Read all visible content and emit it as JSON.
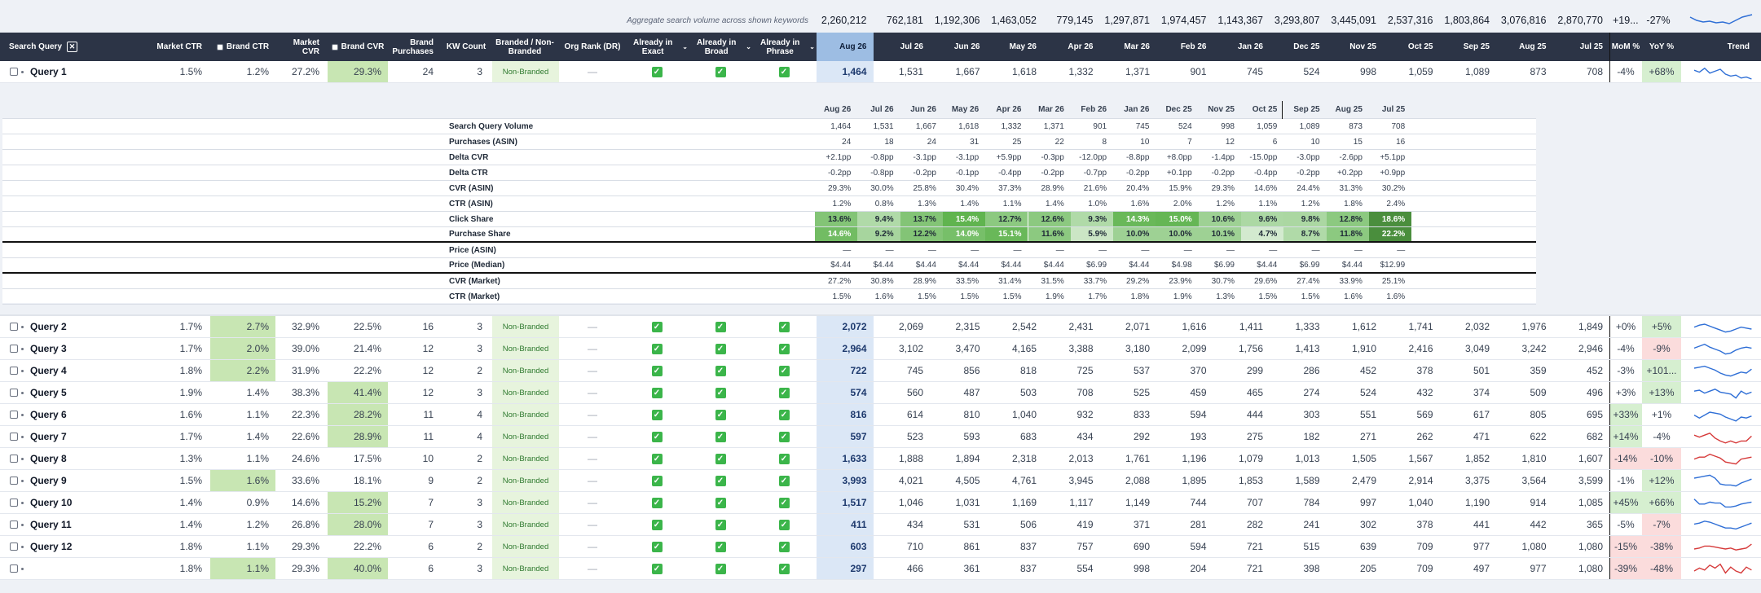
{
  "aggregate": {
    "label": "Aggregate search volume across shown keywords",
    "values": [
      "2,260,212",
      "762,181",
      "1,192,306",
      "1,463,052",
      "779,145",
      "1,297,871",
      "1,974,457",
      "1,143,367",
      "3,293,807",
      "3,445,091",
      "2,537,316",
      "1,803,864",
      "3,076,816",
      "2,870,770"
    ],
    "mom": "+19...",
    "yoy": "-27%"
  },
  "header": {
    "search_query": "Search Query",
    "market_ctr": "Market CTR",
    "brand_ctr": "Brand CTR",
    "market_cvr": "Market CVR",
    "brand_cvr": "Brand CVR",
    "brand_purchases": "Brand Purchases",
    "kw_count": "KW Count",
    "branded": "Branded / Non-Branded",
    "org_rank": "Org Rank (DR)",
    "already_exact": "Already in Exact",
    "already_broad": "Already in Broad",
    "already_phrase": "Already in Phrase",
    "months": [
      "Aug 26",
      "Jul 26",
      "Jun 26",
      "May 26",
      "Apr 26",
      "Mar 26",
      "Feb 26",
      "Jan 26",
      "Dec 25",
      "Nov 25",
      "Oct 25",
      "Sep 25",
      "Aug 25",
      "Jul 25"
    ],
    "mom": "MoM %",
    "yoy": "YoY %",
    "trend": "Trend"
  },
  "queries": [
    {
      "name": "Query 1",
      "mctr": "1.5%",
      "bctr": "1.2%",
      "mcvr": "27.2%",
      "bcvr": "29.3%",
      "bp": "24",
      "kw": "3",
      "br": "Non-Branded",
      "rank": "—",
      "vals": [
        "1,464",
        "1,531",
        "1,667",
        "1,618",
        "1,332",
        "1,371",
        "901",
        "745",
        "524",
        "998",
        "1,059",
        "1,089",
        "873",
        "708"
      ],
      "mom": "-4%",
      "yoy": "+68%",
      "trend": [
        6,
        8,
        4,
        9,
        7,
        5,
        10,
        12,
        11,
        14,
        13,
        15
      ],
      "tc": "#2f6fd6"
    },
    {
      "name": "Query 2",
      "mctr": "1.7%",
      "bctr": "2.7%",
      "mcvr": "32.9%",
      "bcvr": "22.5%",
      "bp": "16",
      "kw": "3",
      "br": "Non-Branded",
      "rank": "—",
      "vals": [
        "2,072",
        "2,069",
        "2,315",
        "2,542",
        "2,431",
        "2,071",
        "1,616",
        "1,411",
        "1,333",
        "1,612",
        "1,741",
        "2,032",
        "1,976",
        "1,849"
      ],
      "mom": "+0%",
      "yoy": "+5%",
      "trend": [
        8,
        6,
        5,
        7,
        9,
        11,
        13,
        12,
        10,
        8,
        9,
        10
      ],
      "tc": "#2f6fd6"
    },
    {
      "name": "Query 3",
      "mctr": "1.7%",
      "bctr": "2.0%",
      "mcvr": "39.0%",
      "bcvr": "21.4%",
      "bp": "12",
      "kw": "3",
      "br": "Non-Branded",
      "rank": "—",
      "vals": [
        "2,964",
        "3,102",
        "3,470",
        "4,165",
        "3,388",
        "3,180",
        "2,099",
        "1,756",
        "1,413",
        "1,910",
        "2,416",
        "3,049",
        "3,242",
        "2,946"
      ],
      "mom": "-4%",
      "yoy": "-9%",
      "trend": [
        7,
        5,
        3,
        6,
        8,
        10,
        13,
        12,
        9,
        7,
        6,
        7
      ],
      "tc": "#2f6fd6"
    },
    {
      "name": "Query 4",
      "mctr": "1.8%",
      "bctr": "2.2%",
      "mcvr": "31.9%",
      "bcvr": "22.2%",
      "bp": "12",
      "kw": "2",
      "br": "Non-Branded",
      "rank": "—",
      "vals": [
        "722",
        "745",
        "856",
        "818",
        "725",
        "537",
        "370",
        "299",
        "286",
        "452",
        "378",
        "501",
        "359",
        "452"
      ],
      "mom": "-3%",
      "yoy": "+101...",
      "trend": [
        5,
        4,
        3,
        5,
        7,
        10,
        12,
        13,
        11,
        9,
        10,
        6
      ],
      "tc": "#2f6fd6"
    },
    {
      "name": "Query 5",
      "mctr": "1.9%",
      "bctr": "1.4%",
      "mcvr": "38.3%",
      "bcvr": "41.4%",
      "bp": "12",
      "kw": "3",
      "br": "Non-Branded",
      "rank": "—",
      "vals": [
        "574",
        "560",
        "487",
        "503",
        "708",
        "525",
        "459",
        "465",
        "274",
        "524",
        "432",
        "374",
        "509",
        "496"
      ],
      "mom": "+3%",
      "yoy": "+13%",
      "trend": [
        6,
        5,
        8,
        6,
        4,
        7,
        8,
        9,
        13,
        6,
        9,
        7
      ],
      "tc": "#2f6fd6"
    },
    {
      "name": "Query 6",
      "mctr": "1.6%",
      "bctr": "1.1%",
      "mcvr": "22.3%",
      "bcvr": "28.2%",
      "bp": "11",
      "kw": "4",
      "br": "Non-Branded",
      "rank": "—",
      "vals": [
        "816",
        "614",
        "810",
        "1,040",
        "932",
        "833",
        "594",
        "444",
        "303",
        "551",
        "569",
        "617",
        "805",
        "695"
      ],
      "mom": "+33%",
      "yoy": "+1%",
      "trend": [
        8,
        11,
        8,
        5,
        6,
        7,
        10,
        12,
        14,
        10,
        11,
        9
      ],
      "tc": "#2f6fd6"
    },
    {
      "name": "Query 7",
      "mctr": "1.7%",
      "bctr": "1.4%",
      "mcvr": "22.6%",
      "bcvr": "28.9%",
      "bp": "11",
      "kw": "4",
      "br": "Non-Branded",
      "rank": "—",
      "vals": [
        "597",
        "523",
        "593",
        "683",
        "434",
        "292",
        "193",
        "275",
        "182",
        "271",
        "262",
        "471",
        "622",
        "682"
      ],
      "mom": "+14%",
      "yoy": "-4%",
      "trend": [
        6,
        8,
        6,
        4,
        9,
        12,
        14,
        12,
        14,
        12,
        12,
        7
      ],
      "tc": "#d63a3a"
    },
    {
      "name": "Query 8",
      "mctr": "1.3%",
      "bctr": "1.1%",
      "mcvr": "24.6%",
      "bcvr": "17.5%",
      "bp": "10",
      "kw": "2",
      "br": "Non-Branded",
      "rank": "—",
      "vals": [
        "1,633",
        "1,888",
        "1,894",
        "2,318",
        "2,013",
        "1,761",
        "1,196",
        "1,079",
        "1,013",
        "1,505",
        "1,567",
        "1,852",
        "1,810",
        "1,607"
      ],
      "mom": "-14%",
      "yoy": "-10%",
      "trend": [
        8,
        6,
        6,
        3,
        5,
        7,
        11,
        12,
        13,
        8,
        7,
        6
      ],
      "tc": "#d63a3a"
    },
    {
      "name": "Query 9",
      "mctr": "1.5%",
      "bctr": "1.6%",
      "mcvr": "33.6%",
      "bcvr": "18.1%",
      "bp": "9",
      "kw": "2",
      "br": "Non-Branded",
      "rank": "—",
      "vals": [
        "3,993",
        "4,021",
        "4,505",
        "4,761",
        "3,945",
        "2,088",
        "1,895",
        "1,853",
        "1,589",
        "2,479",
        "2,914",
        "3,375",
        "3,564",
        "3,599"
      ],
      "mom": "-1%",
      "yoy": "+12%",
      "trend": [
        5,
        4,
        3,
        2,
        5,
        11,
        12,
        12,
        13,
        10,
        8,
        6
      ],
      "tc": "#2f6fd6"
    },
    {
      "name": "Query 10",
      "mctr": "1.4%",
      "bctr": "0.9%",
      "mcvr": "14.6%",
      "bcvr": "15.2%",
      "bp": "7",
      "kw": "3",
      "br": "Non-Branded",
      "rank": "—",
      "vals": [
        "1,517",
        "1,046",
        "1,031",
        "1,169",
        "1,117",
        "1,149",
        "744",
        "707",
        "784",
        "997",
        "1,040",
        "1,190",
        "914",
        "1,085"
      ],
      "mom": "+45%",
      "yoy": "+66%",
      "trend": [
        4,
        9,
        9,
        7,
        8,
        8,
        12,
        12,
        11,
        9,
        8,
        7
      ],
      "tc": "#2f6fd6"
    },
    {
      "name": "Query 11",
      "mctr": "1.4%",
      "bctr": "1.2%",
      "mcvr": "26.8%",
      "bcvr": "28.0%",
      "bp": "7",
      "kw": "3",
      "br": "Non-Branded",
      "rank": "—",
      "vals": [
        "411",
        "434",
        "531",
        "506",
        "419",
        "371",
        "281",
        "282",
        "241",
        "302",
        "378",
        "441",
        "442",
        "365"
      ],
      "mom": "-5%",
      "yoy": "-7%",
      "trend": [
        7,
        6,
        4,
        5,
        7,
        9,
        11,
        11,
        12,
        10,
        8,
        6
      ],
      "tc": "#2f6fd6"
    },
    {
      "name": "Query 12",
      "mctr": "1.8%",
      "bctr": "1.1%",
      "mcvr": "29.3%",
      "bcvr": "22.2%",
      "bp": "6",
      "kw": "2",
      "br": "Non-Branded",
      "rank": "—",
      "vals": [
        "603",
        "710",
        "861",
        "837",
        "757",
        "690",
        "594",
        "721",
        "515",
        "639",
        "709",
        "977",
        "1,080",
        "1,080"
      ],
      "mom": "-15%",
      "yoy": "-38%",
      "trend": [
        10,
        9,
        7,
        7,
        8,
        9,
        10,
        9,
        11,
        10,
        9,
        5
      ],
      "tc": "#d63a3a"
    },
    {
      "name": "",
      "mctr": "1.8%",
      "bctr": "1.1%",
      "mcvr": "29.3%",
      "bcvr": "40.0%",
      "bp": "6",
      "kw": "3",
      "br": "Non-Branded",
      "rank": "—",
      "vals": [
        "297",
        "466",
        "361",
        "837",
        "554",
        "998",
        "204",
        "721",
        "398",
        "205",
        "709",
        "497",
        "977",
        "1,080"
      ],
      "mom": "-39%",
      "yoy": "-48%",
      "trend": [
        10,
        7,
        9,
        4,
        7,
        3,
        12,
        6,
        10,
        12,
        6,
        9
      ],
      "tc": "#d63a3a"
    }
  ],
  "detail": {
    "months": [
      "Aug 26",
      "Jul 26",
      "Jun 26",
      "May 26",
      "Apr 26",
      "Mar 26",
      "Feb 26",
      "Jan 26",
      "Dec 25",
      "Nov 25",
      "Oct 25",
      "Sep 25",
      "Aug 25",
      "Jul 25"
    ],
    "rows": [
      {
        "label": "Search Query Volume",
        "vals": [
          "1,464",
          "1,531",
          "1,667",
          "1,618",
          "1,332",
          "1,371",
          "901",
          "745",
          "524",
          "998",
          "1,059",
          "1,089",
          "873",
          "708"
        ]
      },
      {
        "label": "Purchases (ASIN)",
        "vals": [
          "24",
          "18",
          "24",
          "31",
          "25",
          "22",
          "8",
          "10",
          "7",
          "12",
          "6",
          "10",
          "15",
          "16"
        ]
      },
      {
        "label": "Delta CVR",
        "vals": [
          "+2.1pp",
          "-0.8pp",
          "-3.1pp",
          "-3.1pp",
          "+5.9pp",
          "-0.3pp",
          "-12.0pp",
          "-8.8pp",
          "+8.0pp",
          "-1.4pp",
          "-15.0pp",
          "-3.0pp",
          "-2.6pp",
          "+5.1pp"
        ]
      },
      {
        "label": "Delta CTR",
        "vals": [
          "-0.2pp",
          "-0.8pp",
          "-0.2pp",
          "-0.1pp",
          "-0.4pp",
          "-0.2pp",
          "-0.7pp",
          "-0.2pp",
          "+0.1pp",
          "-0.2pp",
          "-0.4pp",
          "-0.2pp",
          "+0.2pp",
          "+0.9pp"
        ]
      },
      {
        "label": "CVR (ASIN)",
        "vals": [
          "29.3%",
          "30.0%",
          "25.8%",
          "30.4%",
          "37.3%",
          "28.9%",
          "21.6%",
          "20.4%",
          "15.9%",
          "29.3%",
          "14.6%",
          "24.4%",
          "31.3%",
          "30.2%"
        ]
      },
      {
        "label": "CTR (ASIN)",
        "vals": [
          "1.2%",
          "0.8%",
          "1.3%",
          "1.4%",
          "1.1%",
          "1.4%",
          "1.0%",
          "1.6%",
          "2.0%",
          "1.2%",
          "1.1%",
          "1.2%",
          "1.8%",
          "2.4%"
        ]
      },
      {
        "label": "Click Share",
        "vals": [
          "13.6%",
          "9.4%",
          "13.7%",
          "15.4%",
          "12.7%",
          "12.6%",
          "9.3%",
          "14.3%",
          "15.0%",
          "10.6%",
          "9.6%",
          "9.8%",
          "12.8%",
          "18.6%"
        ],
        "heat": [
          0.55,
          0.3,
          0.55,
          0.75,
          0.5,
          0.5,
          0.3,
          0.7,
          0.72,
          0.4,
          0.32,
          0.33,
          0.5,
          0.95
        ]
      },
      {
        "label": "Purchase Share",
        "vals": [
          "14.6%",
          "9.2%",
          "12.2%",
          "14.0%",
          "15.1%",
          "11.6%",
          "5.9%",
          "10.0%",
          "10.0%",
          "10.1%",
          "4.7%",
          "8.7%",
          "11.8%",
          "22.2%"
        ],
        "heat": [
          0.65,
          0.35,
          0.55,
          0.62,
          0.7,
          0.5,
          0.15,
          0.4,
          0.4,
          0.4,
          0.1,
          0.3,
          0.5,
          0.95
        ]
      },
      {
        "label": "Price (ASIN)",
        "vals": [
          "—",
          "—",
          "—",
          "—",
          "—",
          "—",
          "—",
          "—",
          "—",
          "—",
          "—",
          "—",
          "—",
          "—"
        ]
      },
      {
        "label": "Price (Median)",
        "vals": [
          "$4.44",
          "$4.44",
          "$4.44",
          "$4.44",
          "$4.44",
          "$4.44",
          "$6.99",
          "$4.44",
          "$4.98",
          "$6.99",
          "$4.44",
          "$6.99",
          "$4.44",
          "$12.99"
        ]
      },
      {
        "label": "CVR (Market)",
        "vals": [
          "27.2%",
          "30.8%",
          "28.9%",
          "33.5%",
          "31.4%",
          "31.5%",
          "33.7%",
          "29.2%",
          "23.9%",
          "30.7%",
          "29.6%",
          "27.4%",
          "33.9%",
          "25.1%"
        ]
      },
      {
        "label": "CTR (Market)",
        "vals": [
          "1.5%",
          "1.6%",
          "1.5%",
          "1.5%",
          "1.5%",
          "1.9%",
          "1.7%",
          "1.8%",
          "1.9%",
          "1.3%",
          "1.5%",
          "1.5%",
          "1.6%",
          "1.6%"
        ]
      }
    ]
  }
}
